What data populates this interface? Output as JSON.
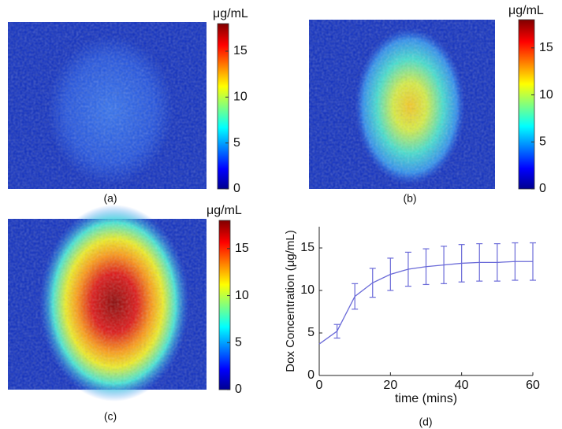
{
  "chart_data": [
    {
      "type": "heatmap",
      "caption": "(a)",
      "colorbar_label": "μg/mL",
      "clim": [
        0,
        18
      ],
      "cticks": [
        0,
        5,
        10,
        15
      ]
    },
    {
      "type": "heatmap",
      "caption": "(b)",
      "colorbar_label": "μg/mL",
      "clim": [
        0,
        18
      ],
      "cticks": [
        0,
        5,
        10,
        15
      ]
    },
    {
      "type": "heatmap",
      "caption": "(c)",
      "colorbar_label": "μg/mL",
      "clim": [
        0,
        18
      ],
      "cticks": [
        0,
        5,
        10,
        15
      ]
    },
    {
      "type": "line",
      "caption": "(d)",
      "x_label": "time (mins)",
      "y_label": "Dox Concentration (μg/mL)",
      "x": [
        0,
        5,
        10,
        15,
        20,
        25,
        30,
        35,
        40,
        45,
        50,
        55,
        60
      ],
      "series": [
        {
          "color": "#6a6ad8",
          "values": [
            3.7,
            5.2,
            9.3,
            10.9,
            11.9,
            12.5,
            12.8,
            13.0,
            13.2,
            13.3,
            13.3,
            13.4,
            13.4
          ],
          "errors": [
            null,
            0.8,
            1.5,
            1.7,
            1.9,
            2.0,
            2.1,
            2.2,
            2.2,
            2.2,
            2.2,
            2.2,
            2.2
          ]
        }
      ],
      "xlim": [
        0,
        60
      ],
      "ylim": [
        0,
        17.5
      ],
      "xticks": [
        0,
        20,
        40,
        60
      ],
      "yticks": [
        0,
        5,
        10,
        15
      ]
    }
  ]
}
